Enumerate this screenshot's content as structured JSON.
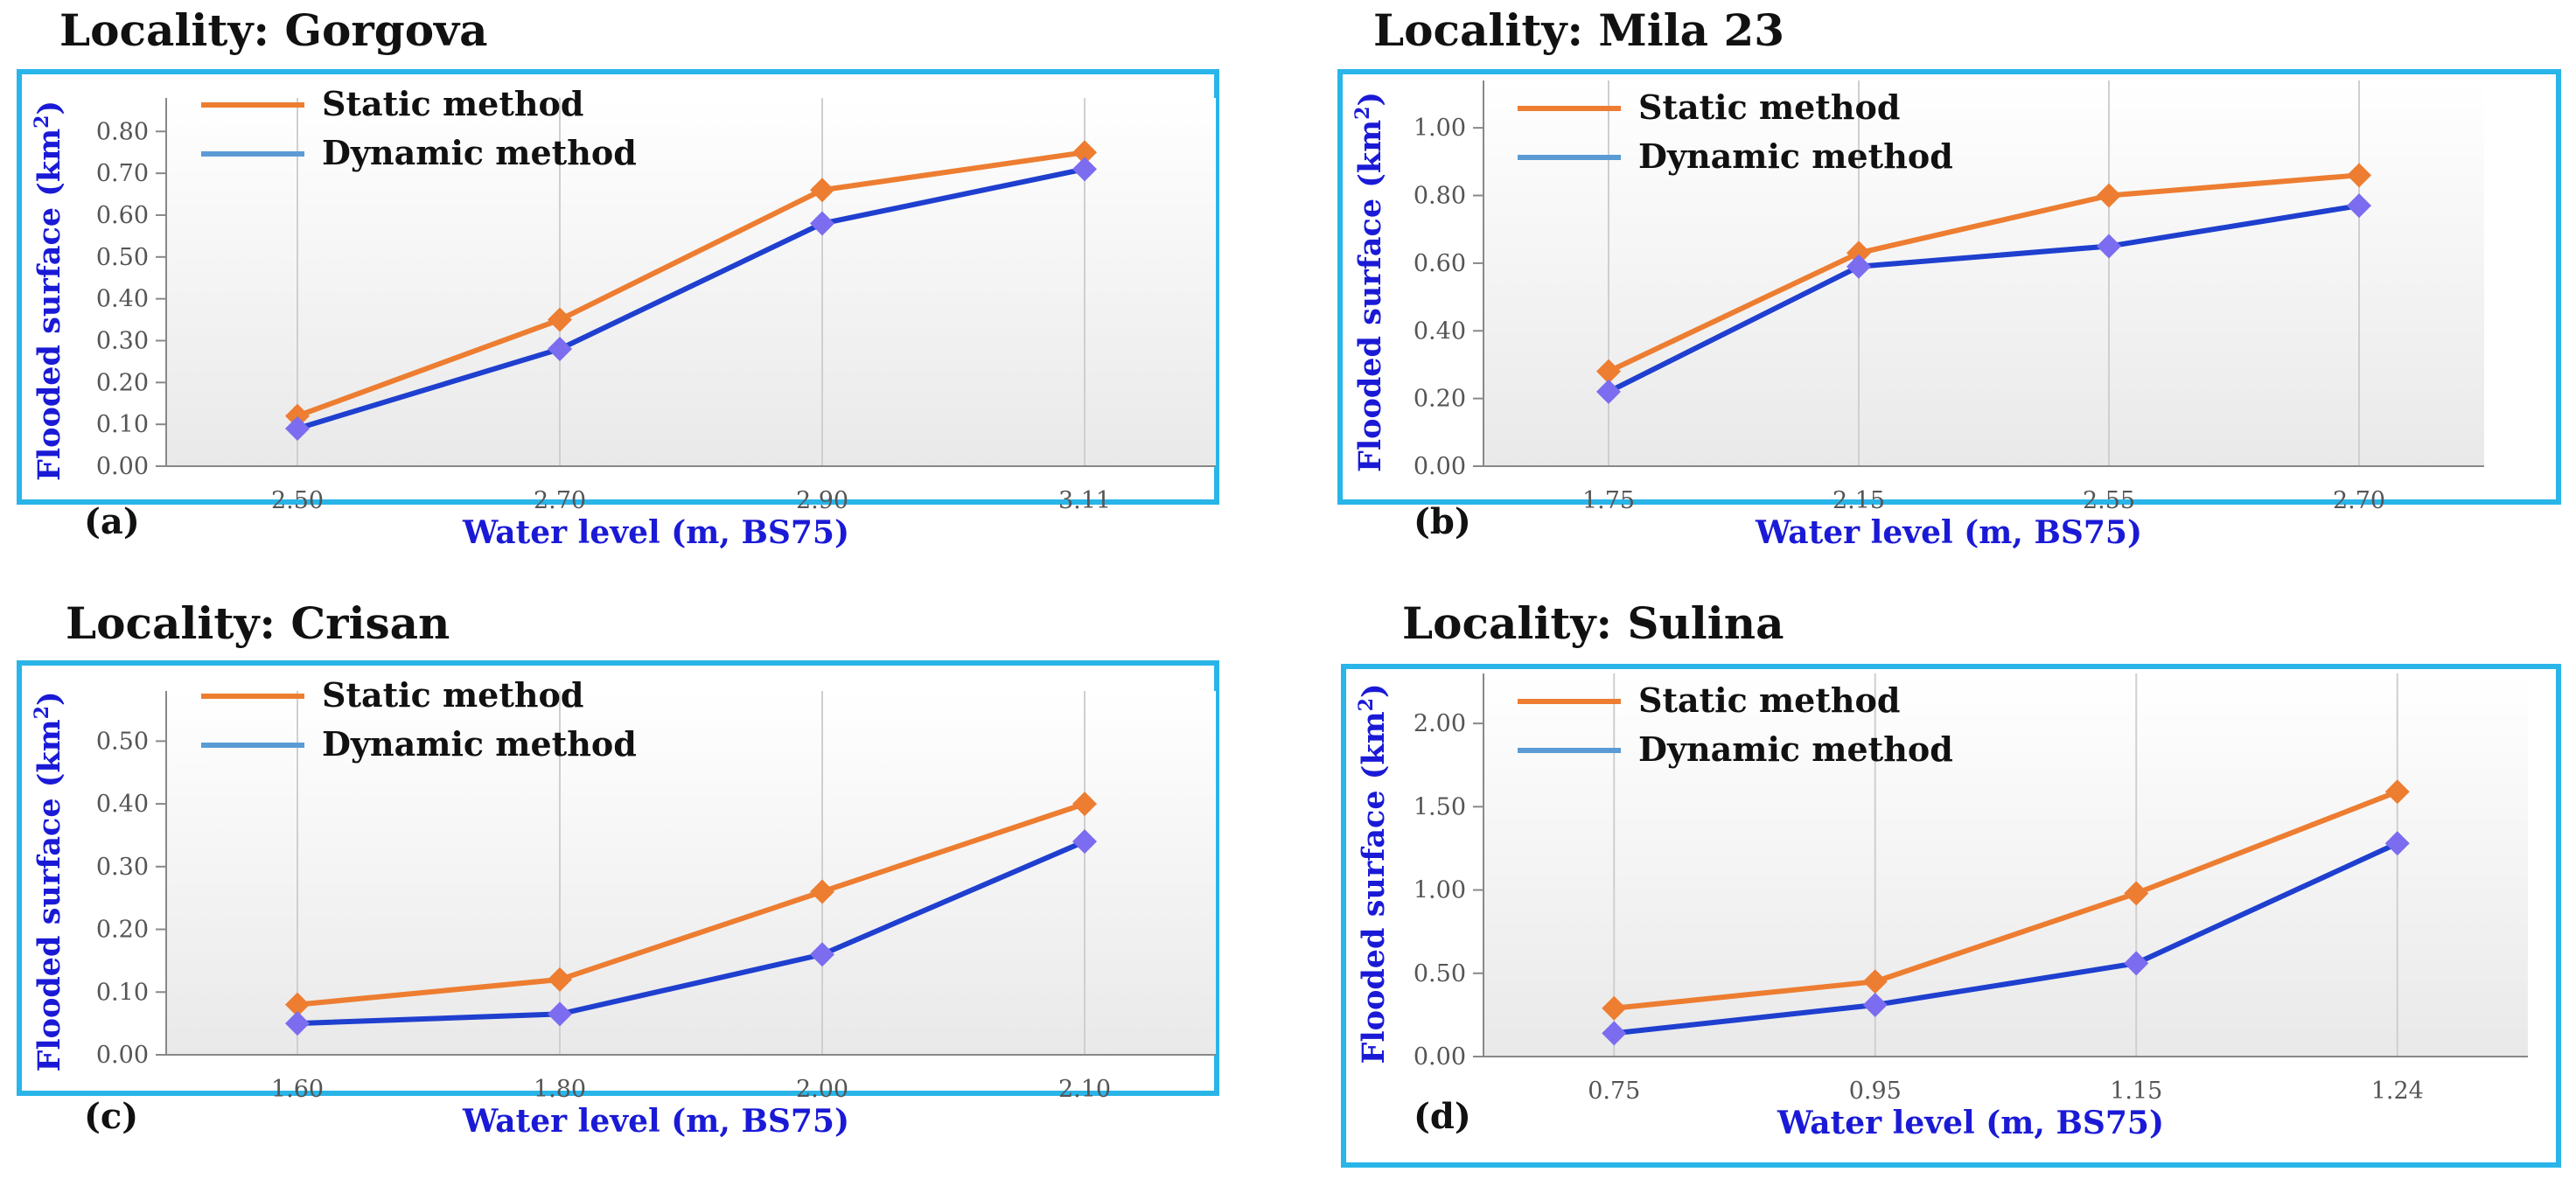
{
  "colors": {
    "frame": "#29b5e8",
    "static": "#ed7d31",
    "dynamic_line": "#1f3fcf",
    "dynamic_marker": "#7b6cf0",
    "dynamic_legend": "#5b9bd5",
    "axis_title": "#1a1ad6",
    "tick": "#555555",
    "title": "#111111"
  },
  "chart_data": [
    {
      "type": "line",
      "title": "Locality: Gorgova",
      "panel_label": "(a)",
      "xlabel": "Water level (m, BS75)",
      "ylabel": "Flooded surface (km",
      "ylabel_sup": "2",
      "ylabel_close": ")",
      "categories": [
        "2.50",
        "2.70",
        "2.90",
        "3.11"
      ],
      "yticks": [
        "0.00",
        "0.10",
        "0.20",
        "0.30",
        "0.40",
        "0.50",
        "0.60",
        "0.70",
        "0.80"
      ],
      "ylim": [
        0,
        0.88
      ],
      "series": [
        {
          "name": "Static method",
          "values": [
            0.12,
            0.35,
            0.66,
            0.75
          ]
        },
        {
          "name": "Dynamic method",
          "values": [
            0.09,
            0.28,
            0.58,
            0.71
          ]
        }
      ]
    },
    {
      "type": "line",
      "title": "Locality: Mila 23",
      "panel_label": "(b)",
      "xlabel": "Water level (m, BS75)",
      "ylabel": "Flooded surface (km",
      "ylabel_sup": "2",
      "ylabel_close": ")",
      "categories": [
        "1.75",
        "2.15",
        "2.55",
        "2.70"
      ],
      "yticks": [
        "0.00",
        "0.20",
        "0.40",
        "0.60",
        "0.80",
        "1.00"
      ],
      "ylim": [
        0,
        1.14
      ],
      "series": [
        {
          "name": "Static method",
          "values": [
            0.28,
            0.63,
            0.8,
            0.86
          ]
        },
        {
          "name": "Dynamic method",
          "values": [
            0.22,
            0.59,
            0.65,
            0.77
          ]
        }
      ]
    },
    {
      "type": "line",
      "title": "Locality: Crisan",
      "panel_label": "(c)",
      "xlabel": "Water level (m, BS75)",
      "ylabel": "Flooded surface (km",
      "ylabel_sup": "2",
      "ylabel_close": ")",
      "categories": [
        "1.60",
        "1.80",
        "2.00",
        "2.10"
      ],
      "yticks": [
        "0.00",
        "0.10",
        "0.20",
        "0.30",
        "0.40",
        "0.50"
      ],
      "ylim": [
        0,
        0.58
      ],
      "series": [
        {
          "name": "Static method",
          "values": [
            0.08,
            0.12,
            0.26,
            0.4
          ]
        },
        {
          "name": "Dynamic method",
          "values": [
            0.05,
            0.065,
            0.16,
            0.34
          ]
        }
      ]
    },
    {
      "type": "line",
      "title": "Locality: Sulina",
      "panel_label": "(d)",
      "xlabel": "Water level (m, BS75)",
      "ylabel": "Flooded surface (km",
      "ylabel_sup": "2",
      "ylabel_close": ")",
      "categories": [
        "0.75",
        "0.95",
        "1.15",
        "1.24"
      ],
      "yticks": [
        "0.00",
        "0.50",
        "1.00",
        "1.50",
        "2.00"
      ],
      "ylim": [
        0,
        2.3
      ],
      "series": [
        {
          "name": "Static method",
          "values": [
            0.29,
            0.45,
            0.98,
            1.59
          ]
        },
        {
          "name": "Dynamic method",
          "values": [
            0.14,
            0.31,
            0.56,
            1.28
          ]
        }
      ]
    }
  ]
}
